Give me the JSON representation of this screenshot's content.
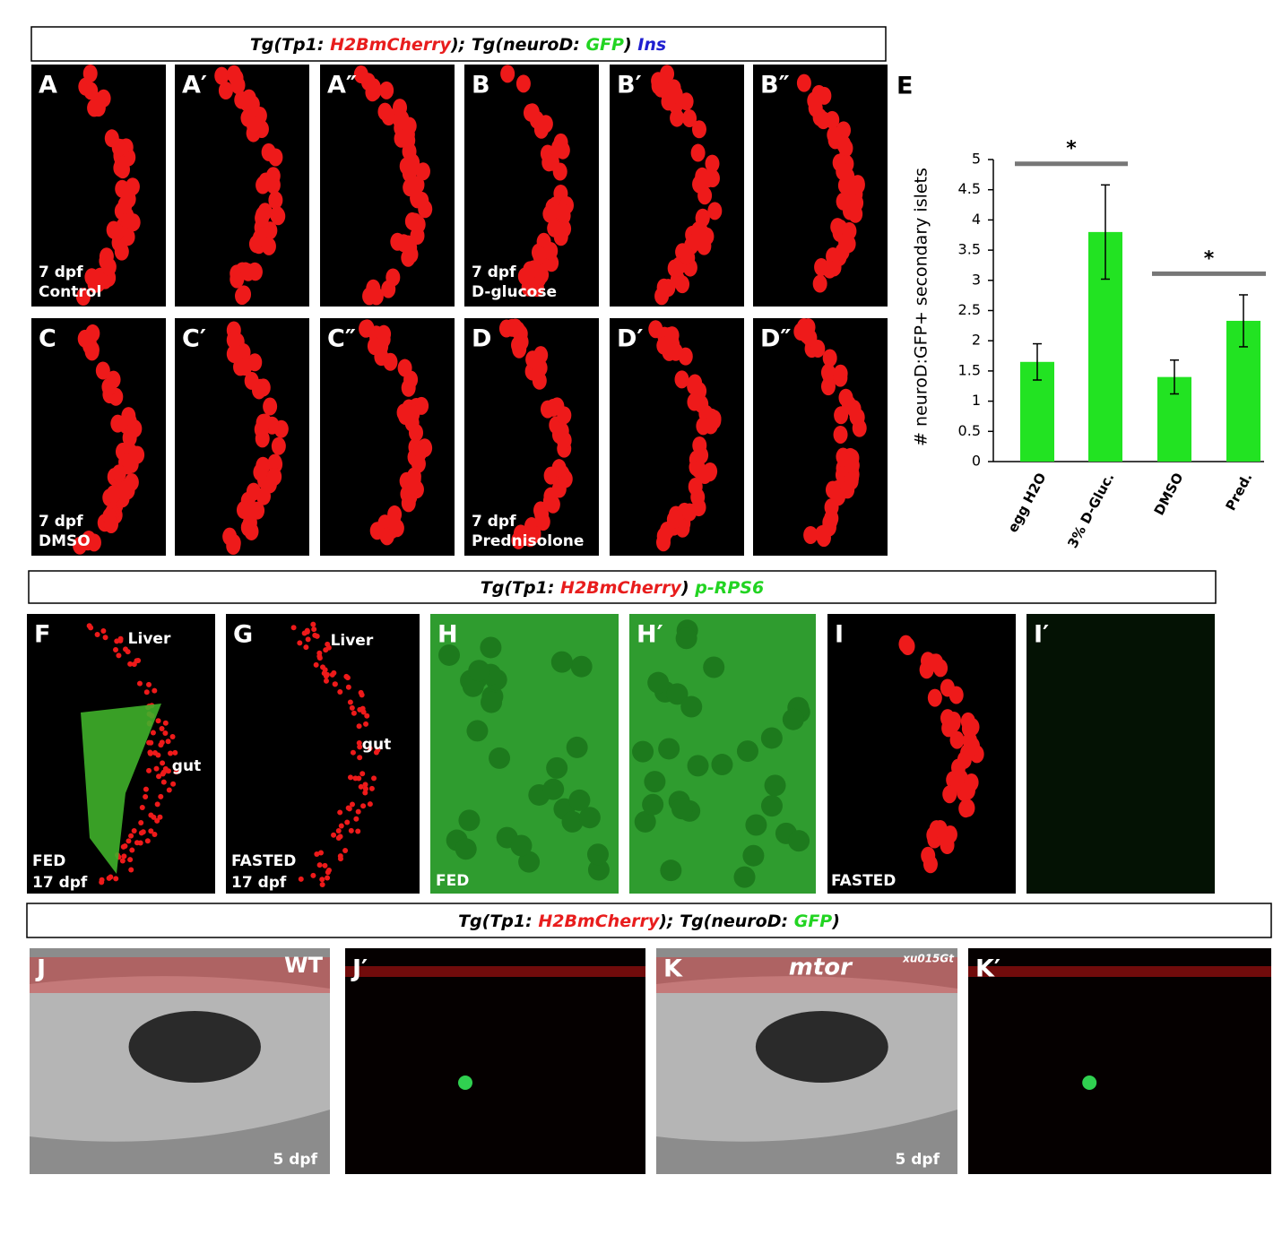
{
  "headers": [
    {
      "segments": [
        {
          "text": "Tg(Tp1: ",
          "color": "#000000"
        },
        {
          "text": "H2BmCherry",
          "color": "#e81d1d"
        },
        {
          "text": "); Tg(neuroD: ",
          "color": "#000000"
        },
        {
          "text": "GFP",
          "color": "#22d422"
        },
        {
          "text": ") ",
          "color": "#000000"
        },
        {
          "text": "Ins",
          "color": "#1f1fd0"
        }
      ]
    },
    {
      "segments": [
        {
          "text": "Tg(Tp1: ",
          "color": "#000000"
        },
        {
          "text": "H2BmCherry",
          "color": "#e81d1d"
        },
        {
          "text": ") ",
          "color": "#000000"
        },
        {
          "text": "p-RPS6",
          "color": "#22d422"
        }
      ]
    },
    {
      "segments": [
        {
          "text": "Tg(Tp1: ",
          "color": "#000000"
        },
        {
          "text": "H2BmCherry",
          "color": "#e81d1d"
        },
        {
          "text": "); Tg(neuroD: ",
          "color": "#000000"
        },
        {
          "text": "GFP",
          "color": "#22d422"
        },
        {
          "text": ")",
          "color": "#000000"
        }
      ]
    }
  ],
  "panels": [
    {
      "label": "A",
      "notes": [
        "7 dpf",
        "Control"
      ]
    },
    {
      "label": "A′",
      "notes": []
    },
    {
      "label": "A″",
      "notes": []
    },
    {
      "label": "B",
      "notes": [
        "7 dpf",
        "D-glucose"
      ]
    },
    {
      "label": "B′",
      "notes": []
    },
    {
      "label": "B″",
      "notes": []
    },
    {
      "label": "C",
      "notes": [
        "7 dpf",
        "DMSO"
      ]
    },
    {
      "label": "C′",
      "notes": []
    },
    {
      "label": "C″",
      "notes": []
    },
    {
      "label": "D",
      "notes": [
        "7 dpf",
        "Prednisolone"
      ]
    },
    {
      "label": "D′",
      "notes": []
    },
    {
      "label": "D″",
      "notes": []
    },
    {
      "label": "F",
      "notes": [
        "Liver",
        "gut",
        "FED",
        "17 dpf"
      ]
    },
    {
      "label": "G",
      "notes": [
        "Liver",
        "gut",
        "FASTED",
        "17 dpf"
      ]
    },
    {
      "label": "H",
      "notes": [
        "FED"
      ]
    },
    {
      "label": "H′",
      "notes": []
    },
    {
      "label": "I",
      "notes": [
        "FASTED"
      ]
    },
    {
      "label": "I′",
      "notes": []
    },
    {
      "label": "J",
      "notes": [
        "WT",
        "5 dpf"
      ]
    },
    {
      "label": "J′",
      "notes": []
    },
    {
      "label": "K",
      "notes": [
        "mtor",
        "xu015Gt",
        "5 dpf"
      ]
    },
    {
      "label": "K′",
      "notes": []
    }
  ],
  "chart_data": {
    "type": "bar",
    "panel_label": "E",
    "y_label": "# neuroD:GFP+ secondary islets",
    "categories": [
      "egg H2O",
      "3% D-Gluc.",
      "DMSO",
      "Pred."
    ],
    "values": [
      1.65,
      3.8,
      1.4,
      2.33
    ],
    "errors": [
      0.3,
      0.78,
      0.28,
      0.43
    ],
    "color": "#22e322",
    "ylim": [
      0,
      5
    ],
    "yticks": [
      0,
      0.5,
      1,
      1.5,
      2,
      2.5,
      3,
      3.5,
      4,
      4.5,
      5
    ],
    "annotations": [
      {
        "text": "*",
        "categories": [
          "egg H2O",
          "3% D-Gluc."
        ]
      },
      {
        "text": "*",
        "categories": [
          "DMSO",
          "Pred."
        ]
      }
    ]
  }
}
